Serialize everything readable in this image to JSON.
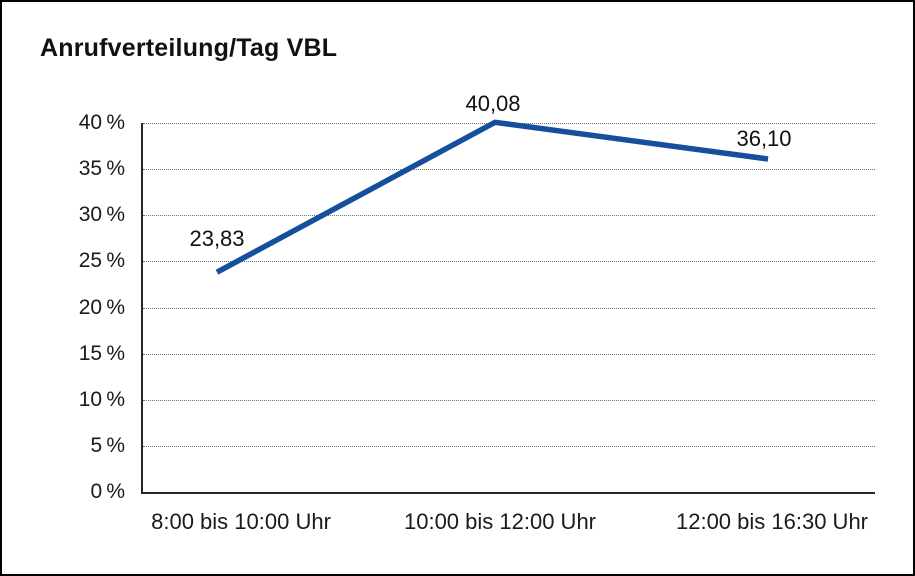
{
  "chart_data": {
    "type": "line",
    "title": "Anrufverteilung/Tag VBL",
    "categories": [
      "8:00 bis 10:00 Uhr",
      "10:00 bis 12:00 Uhr",
      "12:00 bis 16:30 Uhr"
    ],
    "values": [
      23.83,
      40.08,
      36.1
    ],
    "point_labels": [
      "23,83",
      "40,08",
      "36,10"
    ],
    "y_axis": {
      "min": 0,
      "max": 40,
      "step": 5,
      "unit": "%",
      "tick_labels": [
        "0 %",
        "5 %",
        "10 %",
        "15 %",
        "20 %",
        "25 %",
        "30 %",
        "35 %",
        "40 %"
      ]
    },
    "grid": "dotted horizontal lines at every 5% step",
    "legend": "none",
    "colors": {
      "line": "#164F9B",
      "text": "#1A1A1A",
      "grid": "#6E6E6E",
      "axis": "#262626",
      "frame_border": "#000000",
      "background": "#FFFFFF"
    }
  }
}
